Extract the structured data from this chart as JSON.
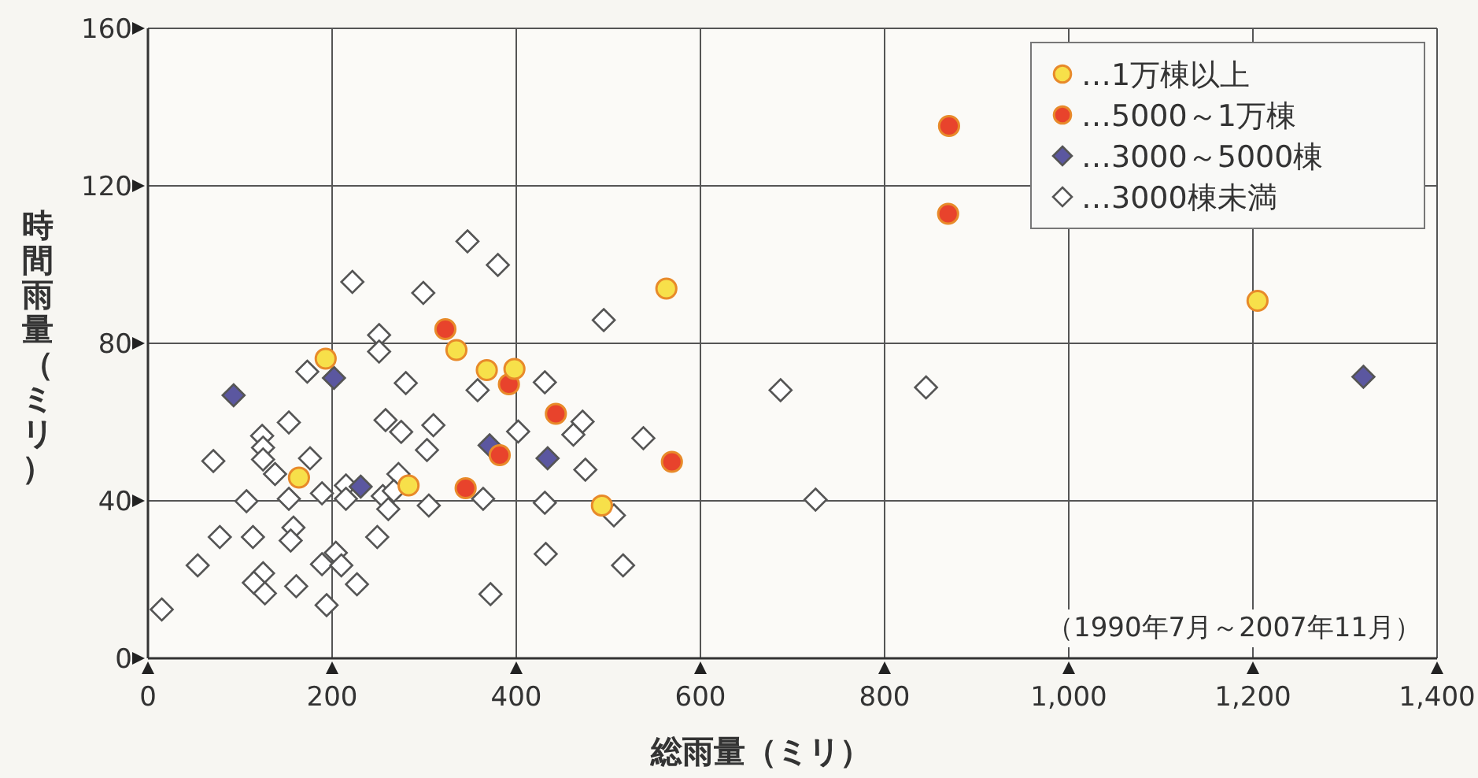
{
  "chart_data": {
    "type": "scatter",
    "xlabel": "総雨量（ミリ）",
    "ylabel": "時間雨量（ミリ）",
    "xlim": [
      0,
      1400
    ],
    "ylim": [
      0,
      160
    ],
    "xticks": [
      0,
      200,
      400,
      600,
      800,
      {
        "value": 1000,
        "label": "1,000"
      },
      {
        "value": 1200,
        "label": "1,200"
      },
      {
        "value": 1400,
        "label": "1,400"
      }
    ],
    "yticks": [
      0,
      40,
      80,
      120,
      160
    ],
    "grid": true,
    "legend": "top right",
    "annotations": [
      "（1990年7月～2007年11月）"
    ],
    "series": [
      {
        "name": "…1万棟以上",
        "color": "#f7e04a",
        "marker": "circle",
        "x": [
          193,
          335,
          368,
          398,
          164,
          283,
          563,
          493,
          1205
        ],
        "values": [
          76.1,
          78.3,
          73.2,
          73.5,
          45.9,
          43.9,
          93.9,
          38.8,
          90.8
        ]
      },
      {
        "name": "…5000～1万棟",
        "color": "#e8432c",
        "marker": "circle",
        "x": [
          323,
          392,
          382,
          345,
          443,
          569,
          870,
          869
        ],
        "values": [
          83.6,
          69.6,
          51.6,
          43.2,
          62.1,
          49.9,
          135.2,
          112.9
        ]
      },
      {
        "name": "…3000～5000棟",
        "color": "#5b57a0",
        "marker": "diamond",
        "x": [
          93,
          202,
          231,
          371,
          434,
          1320
        ],
        "values": [
          66.8,
          71.2,
          43.6,
          54.1,
          50.8,
          71.5
        ]
      },
      {
        "name": "…3000棟未満",
        "color": "#ffffff",
        "marker": "diamond",
        "x": [
          347,
          380,
          222,
          299,
          251,
          251,
          173,
          280,
          358,
          431,
          153,
          258,
          310,
          275,
          124,
          125,
          125,
          71,
          176,
          303,
          402,
          138,
          272,
          107,
          153,
          189,
          215,
          215,
          255,
          267,
          261,
          305,
          364,
          431,
          78,
          114,
          158,
          155,
          249,
          54,
          204,
          189,
          210,
          125,
          115,
          127,
          161,
          227,
          194,
          372,
          15,
          495,
          472,
          462,
          538,
          475,
          506,
          432,
          516,
          687,
          725,
          845
        ],
        "values": [
          105.9,
          99.9,
          95.6,
          92.8,
          82.1,
          77.9,
          72.8,
          69.9,
          68.1,
          70.1,
          59.9,
          60.5,
          59.2,
          57.5,
          56.5,
          53.5,
          50.5,
          50.1,
          50.8,
          52.9,
          57.6,
          46.8,
          46.8,
          39.9,
          40.5,
          41.9,
          43.9,
          40.5,
          41.2,
          42.5,
          37.9,
          38.8,
          40.5,
          39.5,
          30.8,
          30.8,
          33.2,
          29.9,
          30.8,
          23.6,
          26.8,
          23.9,
          23.6,
          21.6,
          19.2,
          16.5,
          18.3,
          18.8,
          13.5,
          16.3,
          12.4,
          85.9,
          60.1,
          56.8,
          55.9,
          47.9,
          36.3,
          26.5,
          23.6,
          68.1,
          40.3,
          68.8
        ]
      }
    ]
  }
}
